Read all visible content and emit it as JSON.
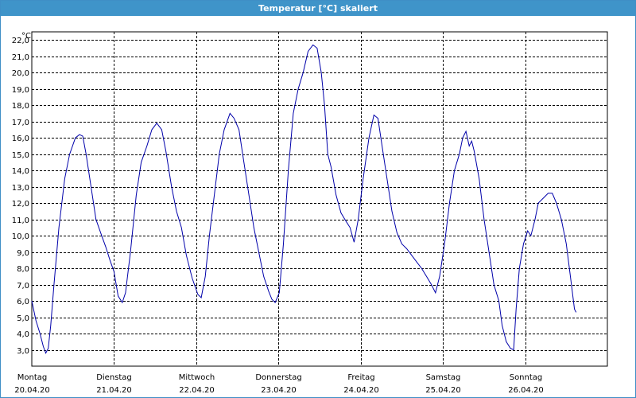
{
  "window": {
    "title": "Temperatur [°C] skaliert"
  },
  "chart_data": {
    "type": "line",
    "title": "Temperatur [°C] skaliert",
    "yunit": "°C",
    "ylim": [
      2.0,
      22.5
    ],
    "yticks": [
      "3,0",
      "4,0",
      "5,0",
      "6,0",
      "7,0",
      "8,0",
      "9,0",
      "10,0",
      "11,0",
      "12,0",
      "13,0",
      "14,0",
      "15,0",
      "16,0",
      "17,0",
      "18,0",
      "19,0",
      "20,0",
      "21,0",
      "22,0"
    ],
    "xlim": [
      0,
      7
    ],
    "xlabels": [
      {
        "day": "Montag",
        "date": "20.04.20"
      },
      {
        "day": "Dienstag",
        "date": "21.04.20"
      },
      {
        "day": "Mittwoch",
        "date": "22.04.20"
      },
      {
        "day": "Donnerstag",
        "date": "23.04.20"
      },
      {
        "day": "Freitag",
        "date": "24.04.20"
      },
      {
        "day": "Samstag",
        "date": "25.04.20"
      },
      {
        "day": "Sonntag",
        "date": "26.04.20"
      }
    ],
    "grid": true,
    "series": [
      {
        "color": "#0000aa",
        "points": [
          [
            0.0,
            6.0
          ],
          [
            0.05,
            4.8
          ],
          [
            0.1,
            4.0
          ],
          [
            0.14,
            3.2
          ],
          [
            0.17,
            2.8
          ],
          [
            0.2,
            3.1
          ],
          [
            0.23,
            4.5
          ],
          [
            0.27,
            7.0
          ],
          [
            0.33,
            10.5
          ],
          [
            0.4,
            13.5
          ],
          [
            0.46,
            15.0
          ],
          [
            0.53,
            16.0
          ],
          [
            0.58,
            16.2
          ],
          [
            0.62,
            16.1
          ],
          [
            0.66,
            15.0
          ],
          [
            0.72,
            13.0
          ],
          [
            0.78,
            11.0
          ],
          [
            0.85,
            10.0
          ],
          [
            0.9,
            9.3
          ],
          [
            0.95,
            8.5
          ],
          [
            1.0,
            7.8
          ],
          [
            1.05,
            6.3
          ],
          [
            1.1,
            5.9
          ],
          [
            1.14,
            6.5
          ],
          [
            1.2,
            9.0
          ],
          [
            1.27,
            12.5
          ],
          [
            1.33,
            14.5
          ],
          [
            1.4,
            15.5
          ],
          [
            1.46,
            16.5
          ],
          [
            1.52,
            16.9
          ],
          [
            1.58,
            16.5
          ],
          [
            1.63,
            15.2
          ],
          [
            1.7,
            13.0
          ],
          [
            1.76,
            11.5
          ],
          [
            1.82,
            10.5
          ],
          [
            1.88,
            8.8
          ],
          [
            1.95,
            7.4
          ],
          [
            2.02,
            6.4
          ],
          [
            2.06,
            6.2
          ],
          [
            2.11,
            7.5
          ],
          [
            2.16,
            10.0
          ],
          [
            2.22,
            12.5
          ],
          [
            2.28,
            15.0
          ],
          [
            2.34,
            16.5
          ],
          [
            2.41,
            17.5
          ],
          [
            2.46,
            17.2
          ],
          [
            2.52,
            16.5
          ],
          [
            2.58,
            14.5
          ],
          [
            2.64,
            12.5
          ],
          [
            2.7,
            10.5
          ],
          [
            2.76,
            9.0
          ],
          [
            2.82,
            7.5
          ],
          [
            2.88,
            6.6
          ],
          [
            2.92,
            6.1
          ],
          [
            2.96,
            5.9
          ],
          [
            3.01,
            6.5
          ],
          [
            3.06,
            9.5
          ],
          [
            3.12,
            14.0
          ],
          [
            3.18,
            17.5
          ],
          [
            3.24,
            19.0
          ],
          [
            3.3,
            20.0
          ],
          [
            3.36,
            21.3
          ],
          [
            3.42,
            21.7
          ],
          [
            3.47,
            21.5
          ],
          [
            3.52,
            20.0
          ],
          [
            3.56,
            18.0
          ],
          [
            3.6,
            15.0
          ],
          [
            3.64,
            14.2
          ],
          [
            3.7,
            12.5
          ],
          [
            3.76,
            11.4
          ],
          [
            3.82,
            10.9
          ],
          [
            3.87,
            10.5
          ],
          [
            3.92,
            9.6
          ],
          [
            3.97,
            11.0
          ],
          [
            4.03,
            13.5
          ],
          [
            4.1,
            16.0
          ],
          [
            4.16,
            17.4
          ],
          [
            4.21,
            17.2
          ],
          [
            4.26,
            15.5
          ],
          [
            4.32,
            13.5
          ],
          [
            4.38,
            11.5
          ],
          [
            4.44,
            10.2
          ],
          [
            4.5,
            9.5
          ],
          [
            4.56,
            9.2
          ],
          [
            4.62,
            8.8
          ],
          [
            4.68,
            8.4
          ],
          [
            4.74,
            8.0
          ],
          [
            4.8,
            7.5
          ],
          [
            4.86,
            7.0
          ],
          [
            4.91,
            6.5
          ],
          [
            4.96,
            7.5
          ],
          [
            5.02,
            9.5
          ],
          [
            5.08,
            12.0
          ],
          [
            5.14,
            14.0
          ],
          [
            5.2,
            15.0
          ],
          [
            5.24,
            16.0
          ],
          [
            5.28,
            16.4
          ],
          [
            5.32,
            15.5
          ],
          [
            5.35,
            15.8
          ],
          [
            5.38,
            15.2
          ],
          [
            5.44,
            13.5
          ],
          [
            5.5,
            11.0
          ],
          [
            5.56,
            9.0
          ],
          [
            5.62,
            7.0
          ],
          [
            5.68,
            6.0
          ],
          [
            5.72,
            4.5
          ],
          [
            5.77,
            3.5
          ],
          [
            5.82,
            3.1
          ],
          [
            5.86,
            3.0
          ],
          [
            5.89,
            5.5
          ],
          [
            5.93,
            8.0
          ],
          [
            5.98,
            9.5
          ],
          [
            6.03,
            10.3
          ],
          [
            6.07,
            10.0
          ],
          [
            6.12,
            11.0
          ],
          [
            6.16,
            12.0
          ],
          [
            6.22,
            12.3
          ],
          [
            6.28,
            12.6
          ],
          [
            6.33,
            12.6
          ],
          [
            6.38,
            12.0
          ],
          [
            6.44,
            11.0
          ],
          [
            6.5,
            9.5
          ],
          [
            6.55,
            7.5
          ],
          [
            6.6,
            5.5
          ],
          [
            6.62,
            5.3
          ]
        ]
      }
    ]
  }
}
